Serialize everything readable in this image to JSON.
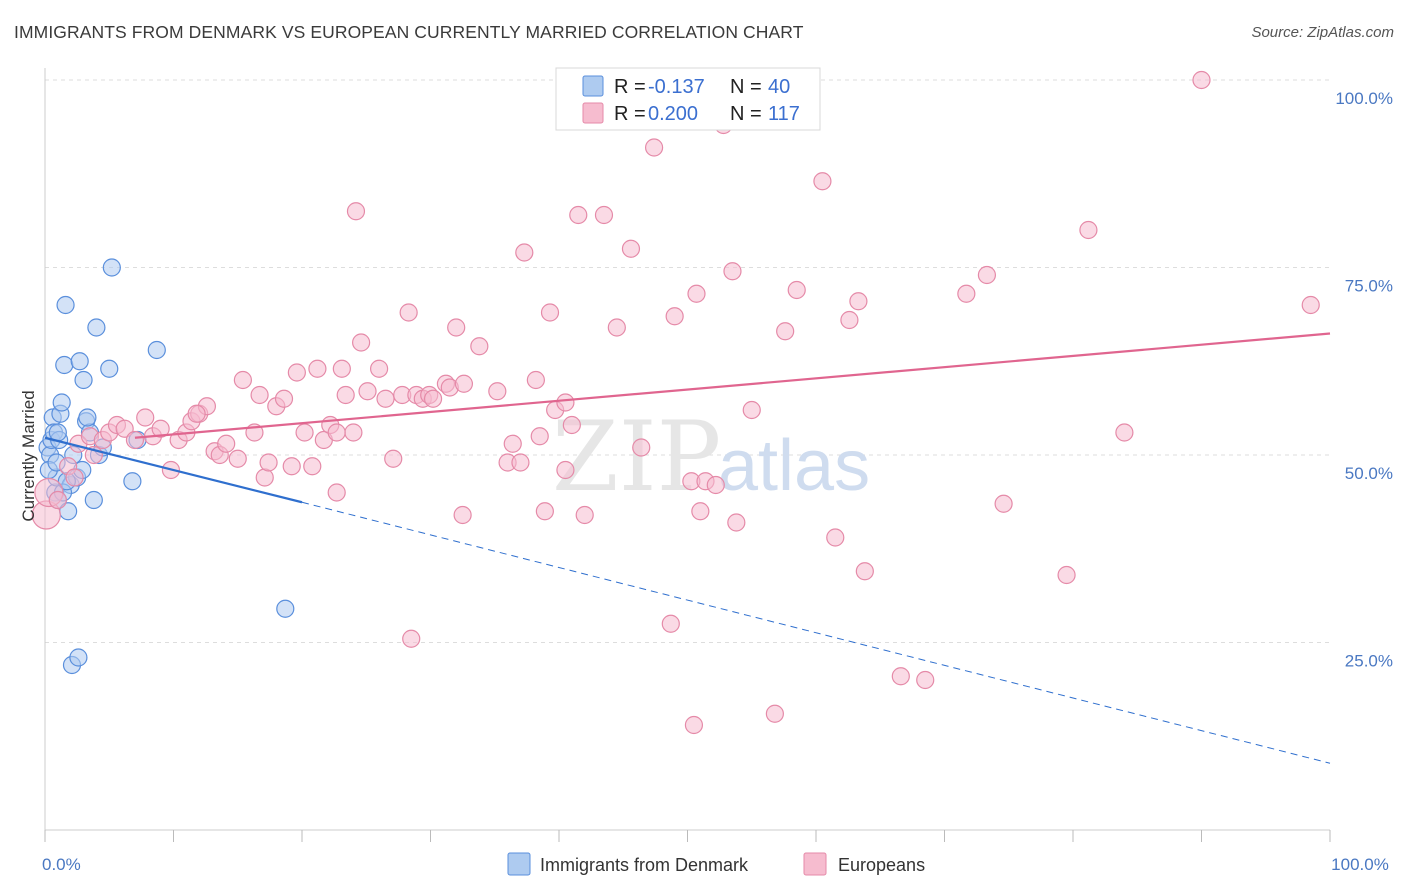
{
  "title": "IMMIGRANTS FROM DENMARK VS EUROPEAN CURRENTLY MARRIED CORRELATION CHART",
  "source": "Source: ZipAtlas.com",
  "watermark": {
    "zip": "ZIP",
    "atlas": "atlas"
  },
  "colors": {
    "blue_fill": "#aecbf0",
    "blue_stroke": "#5a8fdc",
    "blue_line": "#2f6fce",
    "pink_fill": "#f6bccf",
    "pink_stroke": "#e58aa8",
    "pink_line": "#e0658f",
    "tick_text": "#4a78c2",
    "grid": "#dddddd"
  },
  "legend": {
    "rows": [
      {
        "r_label": "R =",
        "r_value": "-0.137",
        "n_label": "N =",
        "n_value": "40"
      },
      {
        "r_label": "R =",
        "r_value": "0.200",
        "n_label": "N =",
        "n_value": "117"
      }
    ]
  },
  "bottom_legend": [
    "Immigrants from Denmark",
    "Europeans"
  ],
  "chart_data": {
    "type": "scatter",
    "xlabel": "",
    "ylabel": "Currently Married",
    "xlim": [
      0,
      100
    ],
    "ylim": [
      0,
      100
    ],
    "x_ticks": [
      0,
      10,
      20,
      30,
      40,
      50,
      60,
      70,
      80,
      90,
      100
    ],
    "x_tick_labels": {
      "0": "0.0%",
      "100": "100.0%"
    },
    "y_ticks": [
      25,
      50,
      75,
      100
    ],
    "y_tick_labels": [
      "25.0%",
      "50.0%",
      "75.0%",
      "100.0%"
    ],
    "grid": true,
    "legend_position": "top-center",
    "series": [
      {
        "name": "Immigrants from Denmark",
        "r": -0.137,
        "n": 40,
        "trend": {
          "x0": 0,
          "y0": 52.3,
          "x1": 20,
          "y1": 43.7,
          "dash_x1": 100,
          "dash_y1": 8.9
        },
        "points": [
          [
            0.2,
            51
          ],
          [
            0.4,
            50
          ],
          [
            0.5,
            52
          ],
          [
            0.6,
            55
          ],
          [
            0.7,
            53
          ],
          [
            0.8,
            45
          ],
          [
            0.9,
            47
          ],
          [
            1.0,
            44
          ],
          [
            1.1,
            52
          ],
          [
            1.2,
            55.5
          ],
          [
            1.3,
            57
          ],
          [
            1.5,
            62
          ],
          [
            1.6,
            70
          ],
          [
            1.8,
            42.5
          ],
          [
            2.0,
            46
          ],
          [
            2.2,
            50
          ],
          [
            2.5,
            47
          ],
          [
            2.7,
            62.5
          ],
          [
            3.0,
            60
          ],
          [
            3.2,
            54.5
          ],
          [
            3.5,
            53
          ],
          [
            3.8,
            44
          ],
          [
            4.0,
            67
          ],
          [
            4.2,
            50
          ],
          [
            4.5,
            51
          ],
          [
            5.0,
            61.5
          ],
          [
            5.2,
            75
          ],
          [
            6.8,
            46.5
          ],
          [
            7.2,
            52
          ],
          [
            8.7,
            64
          ],
          [
            18.7,
            29.5
          ],
          [
            2.1,
            22
          ],
          [
            2.6,
            23
          ],
          [
            0.3,
            48
          ],
          [
            0.9,
            49
          ],
          [
            1.4,
            45
          ],
          [
            2.9,
            48
          ],
          [
            3.3,
            55
          ],
          [
            1.0,
            53
          ],
          [
            1.7,
            46.5
          ]
        ]
      },
      {
        "name": "Europeans",
        "r": 0.2,
        "n": 117,
        "trend": {
          "x0": 7,
          "y0": 52.3,
          "x1": 100,
          "y1": 66.2
        },
        "points": [
          [
            0.1,
            42
          ],
          [
            0.3,
            45
          ],
          [
            1.0,
            44
          ],
          [
            1.8,
            48.5
          ],
          [
            2.3,
            47
          ],
          [
            2.6,
            51.5
          ],
          [
            3.5,
            52.5
          ],
          [
            3.8,
            50
          ],
          [
            4.5,
            52
          ],
          [
            5.0,
            53
          ],
          [
            5.6,
            54
          ],
          [
            6.2,
            53.5
          ],
          [
            7.0,
            52
          ],
          [
            7.8,
            55
          ],
          [
            8.4,
            52.5
          ],
          [
            9.0,
            53.5
          ],
          [
            9.8,
            48
          ],
          [
            10.4,
            52
          ],
          [
            11.0,
            53
          ],
          [
            11.4,
            54.5
          ],
          [
            12.0,
            55.5
          ],
          [
            12.6,
            56.5
          ],
          [
            13.2,
            50.5
          ],
          [
            13.6,
            50
          ],
          [
            14.1,
            51.5
          ],
          [
            15.0,
            49.5
          ],
          [
            15.4,
            60
          ],
          [
            16.3,
            53
          ],
          [
            16.7,
            58
          ],
          [
            17.1,
            47
          ],
          [
            17.4,
            49
          ],
          [
            18.0,
            56.5
          ],
          [
            18.6,
            57.5
          ],
          [
            19.2,
            48.5
          ],
          [
            19.6,
            61
          ],
          [
            20.2,
            53
          ],
          [
            20.8,
            48.5
          ],
          [
            21.2,
            61.5
          ],
          [
            21.7,
            52
          ],
          [
            22.2,
            54
          ],
          [
            22.7,
            45
          ],
          [
            23.1,
            61.5
          ],
          [
            23.4,
            58
          ],
          [
            24.0,
            53
          ],
          [
            24.2,
            82.5
          ],
          [
            24.6,
            65
          ],
          [
            25.1,
            58.5
          ],
          [
            26.0,
            61.5
          ],
          [
            26.5,
            57.5
          ],
          [
            27.1,
            49.5
          ],
          [
            27.8,
            58
          ],
          [
            28.3,
            69
          ],
          [
            28.9,
            58
          ],
          [
            29.4,
            57.5
          ],
          [
            29.9,
            58
          ],
          [
            30.2,
            57.5
          ],
          [
            31.2,
            59.5
          ],
          [
            31.5,
            59
          ],
          [
            32.0,
            67
          ],
          [
            32.6,
            59.5
          ],
          [
            33.8,
            64.5
          ],
          [
            35.2,
            58.5
          ],
          [
            36.0,
            49
          ],
          [
            36.4,
            51.5
          ],
          [
            37.3,
            77
          ],
          [
            38.2,
            60
          ],
          [
            38.5,
            52.5
          ],
          [
            38.9,
            42.5
          ],
          [
            39.3,
            69
          ],
          [
            39.7,
            56
          ],
          [
            40.5,
            48
          ],
          [
            41.0,
            54
          ],
          [
            41.5,
            82
          ],
          [
            42.0,
            42
          ],
          [
            43.5,
            82
          ],
          [
            44.5,
            67
          ],
          [
            45.6,
            77.5
          ],
          [
            46.4,
            51
          ],
          [
            47.4,
            91
          ],
          [
            48.7,
            27.5
          ],
          [
            49.0,
            68.5
          ],
          [
            50.3,
            46.5
          ],
          [
            50.7,
            71.5
          ],
          [
            51.0,
            42.5
          ],
          [
            51.4,
            46.5
          ],
          [
            52.2,
            46
          ],
          [
            52.8,
            94
          ],
          [
            53.5,
            74.5
          ],
          [
            53.8,
            41
          ],
          [
            55.0,
            56
          ],
          [
            57.6,
            66.5
          ],
          [
            58.5,
            72
          ],
          [
            60.5,
            86.5
          ],
          [
            61.5,
            39
          ],
          [
            62.6,
            68
          ],
          [
            63.3,
            70.5
          ],
          [
            63.8,
            34.5
          ],
          [
            66.6,
            20.5
          ],
          [
            68.5,
            20
          ],
          [
            71.7,
            71.5
          ],
          [
            73.3,
            74
          ],
          [
            74.6,
            43.5
          ],
          [
            79.5,
            34
          ],
          [
            81.2,
            80
          ],
          [
            84.0,
            53
          ],
          [
            90.0,
            100
          ],
          [
            32.5,
            42
          ],
          [
            28.5,
            25.5
          ],
          [
            40.5,
            57
          ],
          [
            50.5,
            14
          ],
          [
            56.8,
            15.5
          ],
          [
            22.7,
            53
          ],
          [
            37.0,
            49
          ],
          [
            11.8,
            55.5
          ],
          [
            98.5,
            70
          ]
        ]
      }
    ]
  }
}
